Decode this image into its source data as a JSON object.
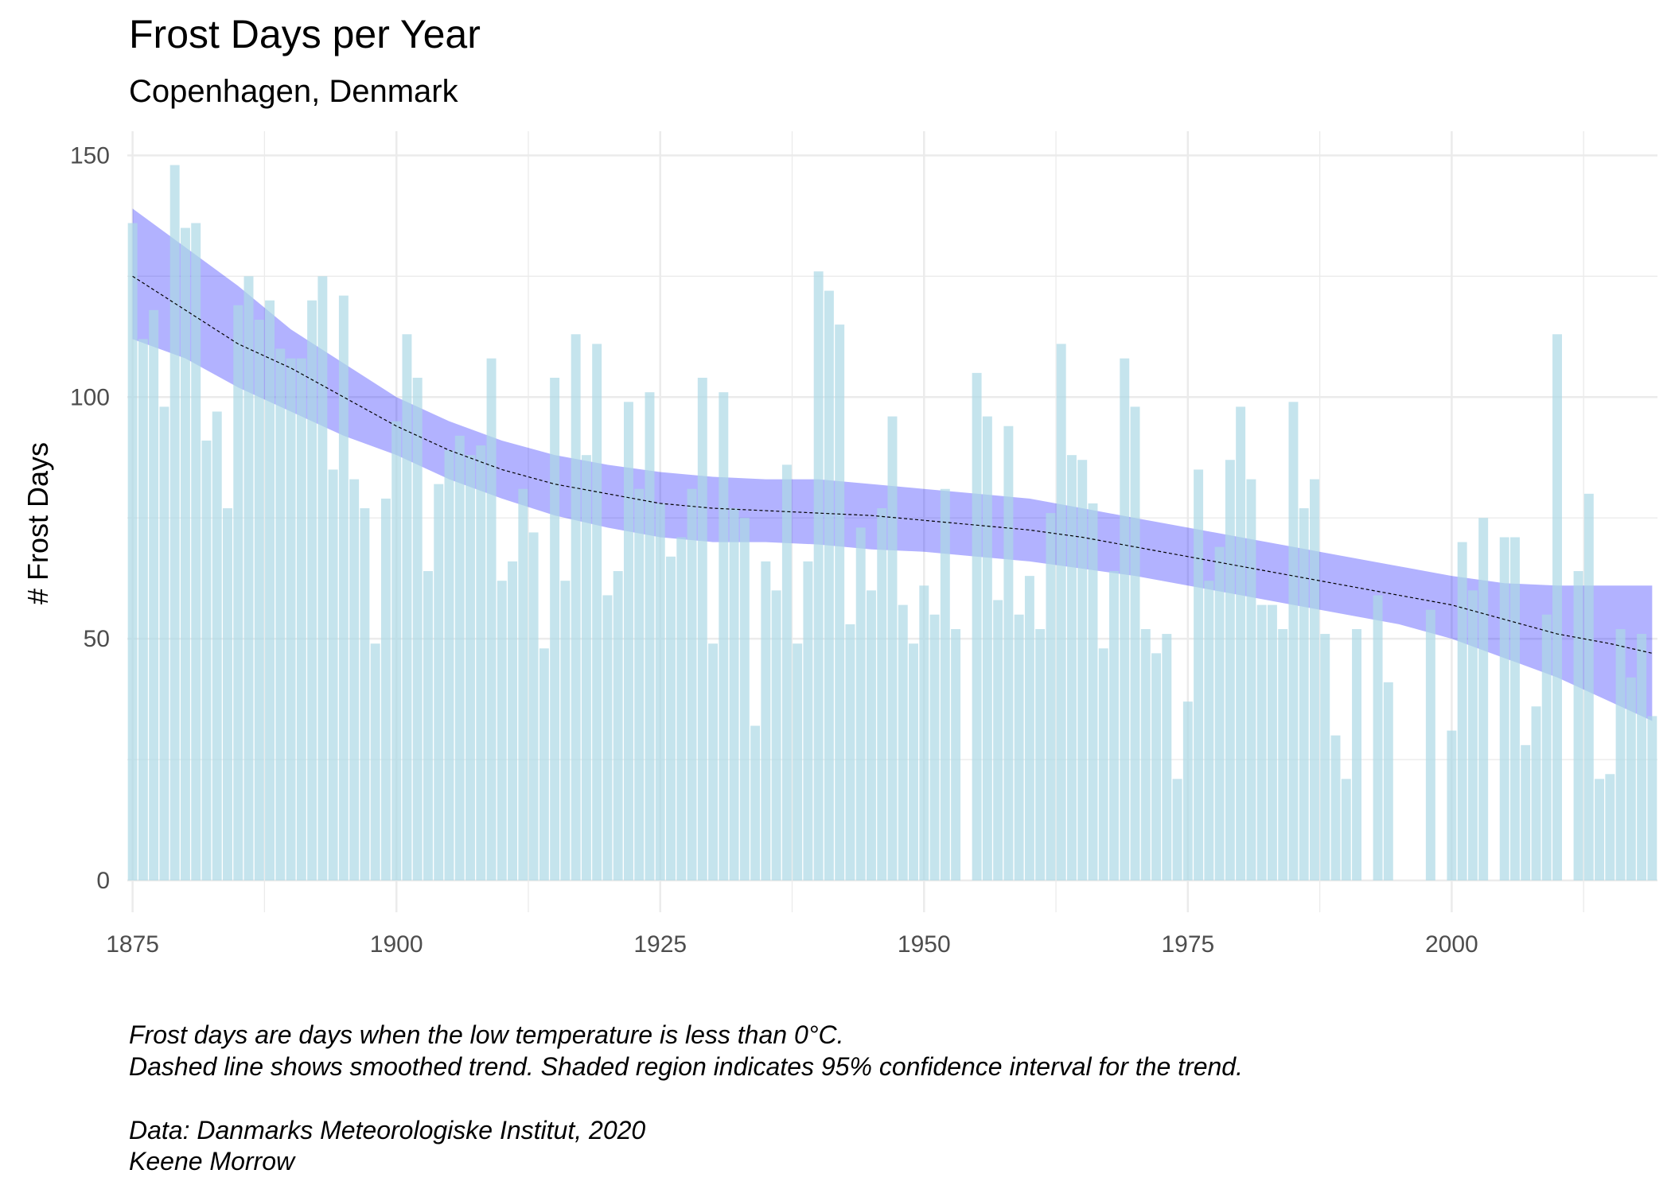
{
  "chart_data": {
    "type": "bar",
    "title": "Frost Days per Year",
    "subtitle": "Copenhagen, Denmark",
    "y_label": "# Frost Days",
    "caption": [
      "Frost days are days when the low temperature is less than 0°C.",
      "Dashed line shows smoothed trend. Shaded region indicates 95% confidence interval for the trend.",
      "Data: Danmarks Meteorologiske Institut, 2020",
      "Keene Morrow"
    ],
    "x": [
      1875,
      1876,
      1877,
      1878,
      1879,
      1880,
      1881,
      1882,
      1883,
      1884,
      1885,
      1886,
      1887,
      1888,
      1889,
      1890,
      1891,
      1892,
      1893,
      1894,
      1895,
      1896,
      1897,
      1898,
      1899,
      1900,
      1901,
      1902,
      1903,
      1904,
      1905,
      1906,
      1907,
      1908,
      1909,
      1910,
      1911,
      1912,
      1913,
      1914,
      1915,
      1916,
      1917,
      1918,
      1919,
      1920,
      1921,
      1922,
      1923,
      1924,
      1925,
      1926,
      1927,
      1928,
      1929,
      1930,
      1931,
      1932,
      1933,
      1934,
      1935,
      1936,
      1937,
      1938,
      1939,
      1940,
      1941,
      1942,
      1943,
      1944,
      1945,
      1946,
      1947,
      1948,
      1949,
      1950,
      1951,
      1952,
      1953,
      1954,
      1955,
      1956,
      1957,
      1958,
      1959,
      1960,
      1961,
      1962,
      1963,
      1964,
      1965,
      1966,
      1967,
      1968,
      1969,
      1970,
      1971,
      1972,
      1973,
      1974,
      1975,
      1976,
      1977,
      1978,
      1979,
      1980,
      1981,
      1982,
      1983,
      1984,
      1985,
      1986,
      1987,
      1988,
      1989,
      1990,
      1991,
      1992,
      1993,
      1994,
      1995,
      1996,
      1997,
      1998,
      1999,
      2000,
      2001,
      2002,
      2003,
      2004,
      2005,
      2006,
      2007,
      2008,
      2009,
      2010,
      2011,
      2012,
      2013,
      2014,
      2015,
      2016,
      2017,
      2018,
      2019
    ],
    "values": [
      136,
      112,
      118,
      98,
      148,
      135,
      136,
      91,
      97,
      77,
      119,
      125,
      116,
      120,
      110,
      108,
      108,
      120,
      125,
      85,
      121,
      83,
      77,
      49,
      79,
      95,
      113,
      104,
      64,
      82,
      89,
      92,
      88,
      90,
      108,
      62,
      66,
      81,
      72,
      48,
      104,
      62,
      113,
      88,
      111,
      59,
      64,
      99,
      81,
      101,
      78,
      67,
      71,
      81,
      104,
      49,
      101,
      77,
      75,
      32,
      66,
      60,
      86,
      49,
      66,
      126,
      122,
      115,
      53,
      73,
      60,
      77,
      96,
      57,
      49,
      61,
      55,
      81,
      52,
      null,
      105,
      96,
      58,
      94,
      55,
      63,
      52,
      76,
      111,
      88,
      87,
      78,
      48,
      64,
      108,
      98,
      52,
      47,
      51,
      21,
      37,
      85,
      62,
      69,
      87,
      98,
      83,
      57,
      57,
      52,
      99,
      77,
      83,
      51,
      30,
      21,
      52,
      null,
      59,
      41,
      null,
      null,
      null,
      56,
      null,
      31,
      70,
      60,
      75,
      null,
      71,
      71,
      28,
      36,
      55,
      113,
      null,
      64,
      80,
      21,
      22,
      52,
      42,
      51,
      34
    ],
    "color": "#add8e6",
    "trend": {
      "color": "#000000",
      "band_color": "#0000ff",
      "x": [
        1875,
        1880,
        1885,
        1890,
        1895,
        1900,
        1905,
        1910,
        1915,
        1920,
        1925,
        1930,
        1935,
        1940,
        1945,
        1950,
        1955,
        1960,
        1965,
        1970,
        1975,
        1980,
        1985,
        1990,
        1995,
        2000,
        2005,
        2010,
        2015,
        2019
      ],
      "values": [
        125,
        118,
        111,
        106,
        100,
        94,
        89,
        85,
        82,
        80,
        78,
        77,
        76.5,
        76,
        75.5,
        74.5,
        73.5,
        72.5,
        71,
        69,
        67,
        65,
        63,
        61,
        59,
        57,
        54,
        51,
        49,
        47
      ],
      "upper": [
        139,
        131,
        123,
        114,
        107,
        100,
        95,
        91,
        88,
        86,
        84.5,
        83.5,
        83,
        83,
        82,
        81,
        80,
        79,
        77,
        75,
        73,
        71,
        69,
        67,
        65,
        63,
        61.5,
        61,
        61,
        61
      ],
      "lower": [
        112,
        108,
        102,
        97,
        92,
        88,
        83,
        79,
        75.5,
        73,
        71,
        70,
        70,
        69.5,
        68.5,
        68,
        67,
        66,
        64.5,
        63,
        61,
        59,
        57,
        55,
        53,
        50,
        46,
        42,
        37,
        33
      ]
    },
    "xlim": [
      1874.5,
      2019.5
    ],
    "xticks": [
      1875,
      1900,
      1925,
      1950,
      1975,
      2000
    ],
    "ylim": [
      0,
      155
    ],
    "yticks": [
      0,
      50,
      100,
      150
    ],
    "grid": true
  }
}
